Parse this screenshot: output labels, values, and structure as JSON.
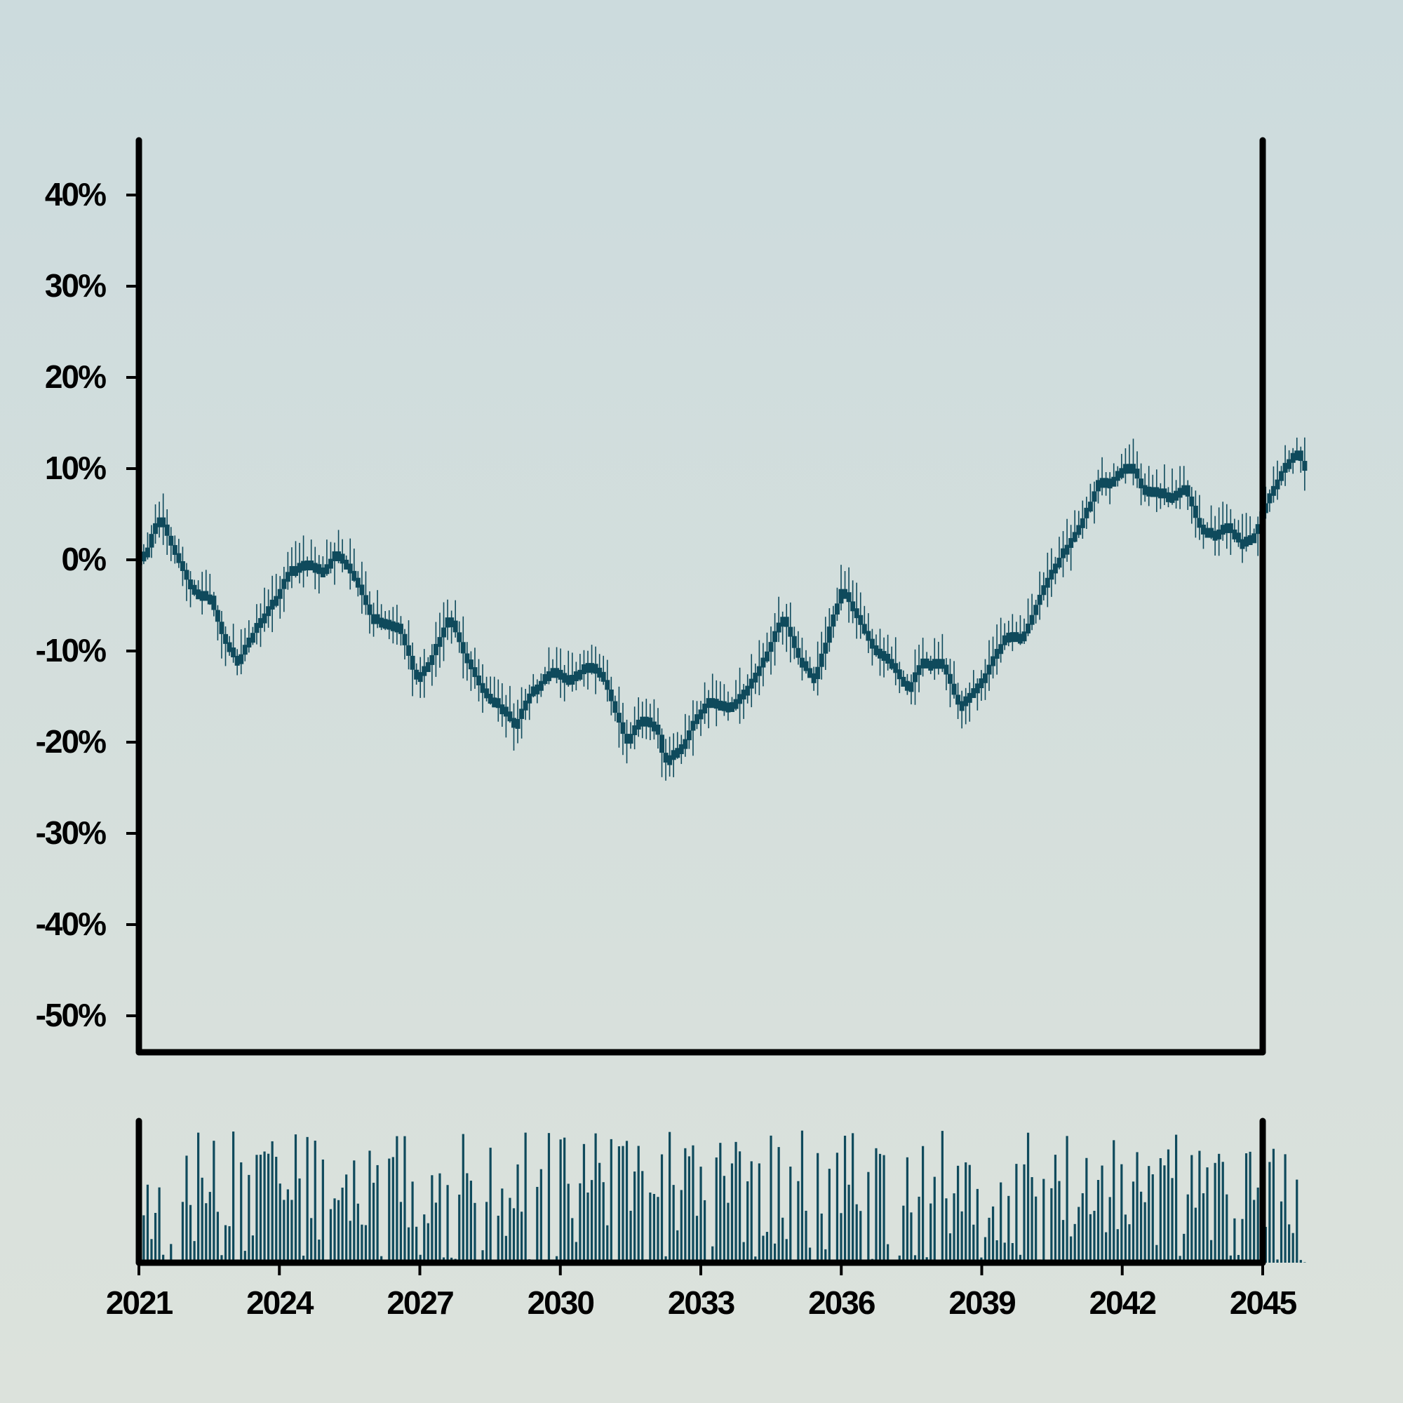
{
  "chart_data": {
    "type": "candlestick",
    "colors": {
      "candle": "#0f4a5c",
      "axis": "#000000"
    },
    "grid": false,
    "legend": "none",
    "x_range": [
      2021,
      2045
    ],
    "ylim": [
      -0.54,
      0.46
    ],
    "x_ticks": [
      {
        "value": 2021,
        "label": "2021"
      },
      {
        "value": 2024,
        "label": "2024"
      },
      {
        "value": 2027,
        "label": "2027"
      },
      {
        "value": 2030,
        "label": "2030"
      },
      {
        "value": 2033,
        "label": "2033"
      },
      {
        "value": 2036,
        "label": "2036"
      },
      {
        "value": 2039,
        "label": "2039"
      },
      {
        "value": 2042,
        "label": "2042"
      },
      {
        "value": 2045,
        "label": "2045"
      }
    ],
    "y_ticks": [
      {
        "value": 0.4,
        "label": "40%"
      },
      {
        "value": 0.3,
        "label": "30%"
      },
      {
        "value": 0.2,
        "label": "20%"
      },
      {
        "value": 0.1,
        "label": "10%"
      },
      {
        "value": 0.0,
        "label": "0%"
      },
      {
        "value": -0.1,
        "label": "-10%"
      },
      {
        "value": -0.2,
        "label": "-20%"
      },
      {
        "value": -0.3,
        "label": "-30%"
      },
      {
        "value": -0.4,
        "label": "-40%"
      },
      {
        "value": -0.5,
        "label": "-50%"
      }
    ],
    "close_path": [
      [
        2021.0,
        0.0
      ],
      [
        2021.25,
        0.01
      ],
      [
        2021.5,
        0.05
      ],
      [
        2021.9,
        0.0
      ],
      [
        2022.2,
        -0.03
      ],
      [
        2022.6,
        -0.04
      ],
      [
        2022.9,
        -0.09
      ],
      [
        2023.2,
        -0.11
      ],
      [
        2023.6,
        -0.07
      ],
      [
        2024.0,
        -0.04
      ],
      [
        2024.3,
        -0.01
      ],
      [
        2024.6,
        0.0
      ],
      [
        2025.0,
        -0.01
      ],
      [
        2025.3,
        0.01
      ],
      [
        2025.7,
        -0.02
      ],
      [
        2026.0,
        -0.06
      ],
      [
        2026.6,
        -0.07
      ],
      [
        2027.0,
        -0.13
      ],
      [
        2027.3,
        -0.11
      ],
      [
        2027.7,
        -0.06
      ],
      [
        2028.0,
        -0.1
      ],
      [
        2028.4,
        -0.14
      ],
      [
        2028.8,
        -0.16
      ],
      [
        2029.1,
        -0.18
      ],
      [
        2029.5,
        -0.14
      ],
      [
        2029.9,
        -0.12
      ],
      [
        2030.3,
        -0.13
      ],
      [
        2030.7,
        -0.11
      ],
      [
        2031.0,
        -0.13
      ],
      [
        2031.2,
        -0.16
      ],
      [
        2031.5,
        -0.2
      ],
      [
        2031.8,
        -0.17
      ],
      [
        2032.1,
        -0.18
      ],
      [
        2032.3,
        -0.22
      ],
      [
        2032.7,
        -0.2
      ],
      [
        2033.0,
        -0.17
      ],
      [
        2033.3,
        -0.15
      ],
      [
        2033.6,
        -0.16
      ],
      [
        2033.9,
        -0.15
      ],
      [
        2034.2,
        -0.13
      ],
      [
        2034.5,
        -0.1
      ],
      [
        2034.8,
        -0.06
      ],
      [
        2035.2,
        -0.11
      ],
      [
        2035.5,
        -0.13
      ],
      [
        2035.8,
        -0.08
      ],
      [
        2036.1,
        -0.03
      ],
      [
        2036.4,
        -0.06
      ],
      [
        2036.7,
        -0.09
      ],
      [
        2037.1,
        -0.11
      ],
      [
        2037.5,
        -0.14
      ],
      [
        2037.8,
        -0.11
      ],
      [
        2038.2,
        -0.11
      ],
      [
        2038.6,
        -0.16
      ],
      [
        2038.9,
        -0.14
      ],
      [
        2039.2,
        -0.12
      ],
      [
        2039.6,
        -0.08
      ],
      [
        2040.0,
        -0.08
      ],
      [
        2040.4,
        -0.03
      ],
      [
        2040.8,
        0.01
      ],
      [
        2041.2,
        0.04
      ],
      [
        2041.6,
        0.09
      ],
      [
        2041.9,
        0.09
      ],
      [
        2042.2,
        0.11
      ],
      [
        2042.5,
        0.08
      ],
      [
        2042.8,
        0.08
      ],
      [
        2043.1,
        0.07
      ],
      [
        2043.4,
        0.08
      ],
      [
        2043.7,
        0.04
      ],
      [
        2044.0,
        0.03
      ],
      [
        2044.3,
        0.04
      ],
      [
        2044.6,
        0.02
      ],
      [
        2044.9,
        0.03
      ],
      [
        2045.2,
        0.07
      ],
      [
        2045.5,
        0.1
      ],
      [
        2045.8,
        0.12
      ],
      [
        2045.95,
        0.1
      ]
    ],
    "volume_scale": "relative, 0 to 1",
    "candle_count": 300
  }
}
